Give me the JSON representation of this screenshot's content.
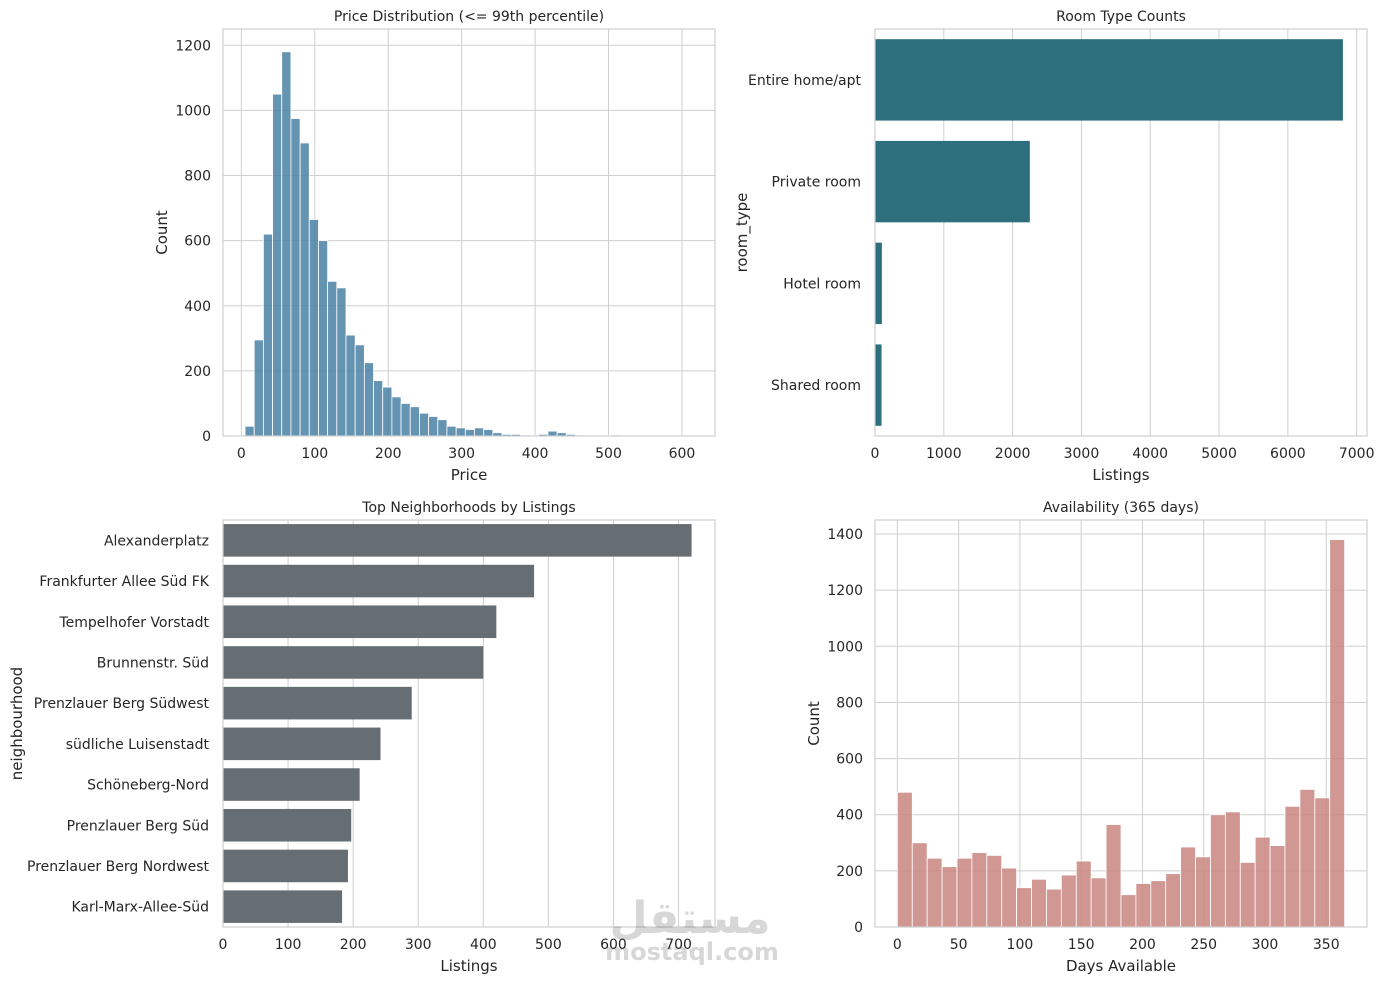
{
  "watermark": {
    "arabic": "مستقل",
    "latin": "mostaql.com"
  },
  "chart_data": [
    {
      "id": "price",
      "type": "bar",
      "title": "Price Distribution (<= 99th percentile)",
      "xlabel": "Price",
      "ylabel": "Count",
      "xlim": [
        -25,
        645
      ],
      "ylim": [
        0,
        1250
      ],
      "xticks": [
        0,
        100,
        200,
        300,
        400,
        500,
        600
      ],
      "yticks": [
        0,
        200,
        400,
        600,
        800,
        1000,
        1200
      ],
      "bin_width": 12.5,
      "bin_start": 5,
      "values": [
        30,
        295,
        620,
        1050,
        1180,
        975,
        900,
        665,
        600,
        475,
        455,
        310,
        280,
        225,
        170,
        150,
        120,
        100,
        90,
        70,
        60,
        50,
        30,
        25,
        20,
        25,
        20,
        10,
        5,
        5,
        3,
        2,
        5,
        15,
        10,
        5,
        3,
        2,
        2,
        2,
        3,
        2,
        1
      ],
      "color": "#4a81a5"
    },
    {
      "id": "room",
      "type": "bar",
      "orientation": "horizontal",
      "title": "Room Type Counts",
      "xlabel": "Listings",
      "ylabel": "room_type",
      "xlim": [
        0,
        7150
      ],
      "xticks": [
        0,
        1000,
        2000,
        3000,
        4000,
        5000,
        6000,
        7000
      ],
      "categories": [
        "Entire home/apt",
        "Private room",
        "Hotel room",
        "Shared room"
      ],
      "values": [
        6800,
        2250,
        100,
        95
      ],
      "color": "#2d6f7c"
    },
    {
      "id": "neigh",
      "type": "bar",
      "orientation": "horizontal",
      "title": "Top Neighborhoods by Listings",
      "xlabel": "Listings",
      "ylabel": "neighbourhood",
      "xlim": [
        0,
        756
      ],
      "xticks": [
        0,
        100,
        200,
        300,
        400,
        500,
        600,
        700
      ],
      "categories": [
        "Alexanderplatz",
        "Frankfurter Allee Süd FK",
        "Tempelhofer Vorstadt",
        "Brunnenstr. Süd",
        "Prenzlauer Berg Südwest",
        "südliche Luisenstadt",
        "Schöneberg-Nord",
        "Prenzlauer Berg Süd",
        "Prenzlauer Berg Nordwest",
        "Karl-Marx-Allee-Süd"
      ],
      "values": [
        720,
        478,
        420,
        400,
        290,
        242,
        210,
        197,
        192,
        183
      ],
      "color": "#666e74"
    },
    {
      "id": "avail",
      "type": "bar",
      "title": "Availability (365 days)",
      "xlabel": "Days Available",
      "ylabel": "Count",
      "xlim": [
        -18.25,
        383.25
      ],
      "ylim": [
        0,
        1450
      ],
      "xticks": [
        0,
        50,
        100,
        150,
        200,
        250,
        300,
        350
      ],
      "yticks": [
        0,
        200,
        400,
        600,
        800,
        1000,
        1200,
        1400
      ],
      "bin_width": 12.1667,
      "bin_start": 0,
      "values": [
        480,
        300,
        245,
        215,
        245,
        265,
        255,
        210,
        140,
        170,
        135,
        185,
        235,
        175,
        365,
        115,
        155,
        165,
        190,
        285,
        250,
        400,
        410,
        230,
        320,
        290,
        430,
        490,
        460,
        1380
      ],
      "color": "#c98580"
    }
  ]
}
